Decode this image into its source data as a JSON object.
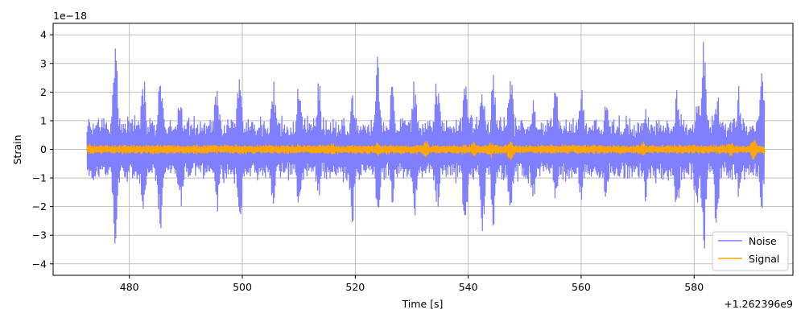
{
  "chart_data": {
    "type": "line",
    "title": "",
    "xlabel": "Time [s]",
    "ylabel": "Strain",
    "x_offset_label": "+1.262396e9",
    "y_scale_label": "1e−18",
    "xlim": [
      466.5,
      597.5
    ],
    "ylim": [
      -4.4,
      4.4
    ],
    "xticks": [
      480,
      500,
      520,
      540,
      560,
      580
    ],
    "yticks": [
      -4,
      -3,
      -2,
      -1,
      0,
      1,
      2,
      3,
      4
    ],
    "ytick_labels": [
      "−4",
      "−3",
      "−2",
      "−1",
      "0",
      "1",
      "2",
      "3",
      "4"
    ],
    "grid": true,
    "legend_position": "bottom-right",
    "x_range": [
      472.5,
      592.5
    ],
    "series": [
      {
        "name": "Noise",
        "color": "#7f7fff",
        "typical_amplitude": 1.0,
        "peaks": [
          {
            "x": 477.5,
            "high": 4.0,
            "low": -3.8
          },
          {
            "x": 482.5,
            "high": 2.8,
            "low": -2.5
          },
          {
            "x": 485.5,
            "high": 3.4,
            "low": -3.2
          },
          {
            "x": 489.0,
            "high": 2.4,
            "low": -2.6
          },
          {
            "x": 495.5,
            "high": 2.6,
            "low": -2.3
          },
          {
            "x": 499.5,
            "high": 3.2,
            "low": -3.0
          },
          {
            "x": 505.5,
            "high": 2.7,
            "low": -2.1
          },
          {
            "x": 510.0,
            "high": 2.8,
            "low": -2.6
          },
          {
            "x": 513.5,
            "high": 2.7,
            "low": -1.9
          },
          {
            "x": 519.5,
            "high": 2.3,
            "low": -3.1
          },
          {
            "x": 524.0,
            "high": 3.6,
            "low": -3.1
          },
          {
            "x": 526.5,
            "high": 2.4,
            "low": -2.2
          },
          {
            "x": 530.5,
            "high": 2.8,
            "low": -2.8
          },
          {
            "x": 534.5,
            "high": 3.0,
            "low": -2.5
          },
          {
            "x": 539.5,
            "high": 2.8,
            "low": -3.3
          },
          {
            "x": 542.5,
            "high": 3.2,
            "low": -3.3
          },
          {
            "x": 544.5,
            "high": 3.0,
            "low": -3.1
          },
          {
            "x": 547.5,
            "high": 3.2,
            "low": -2.6
          },
          {
            "x": 551.5,
            "high": 2.0,
            "low": -2.4
          },
          {
            "x": 555.5,
            "high": 2.5,
            "low": -2.0
          },
          {
            "x": 560.0,
            "high": 2.6,
            "low": -2.1
          },
          {
            "x": 564.5,
            "high": 2.2,
            "low": -2.1
          },
          {
            "x": 571.5,
            "high": 1.7,
            "low": -2.1
          },
          {
            "x": 577.0,
            "high": 2.4,
            "low": -2.7
          },
          {
            "x": 580.5,
            "high": 2.3,
            "low": -2.9
          },
          {
            "x": 581.7,
            "high": 4.0,
            "low": -3.9
          },
          {
            "x": 584.0,
            "high": 2.4,
            "low": -2.9
          },
          {
            "x": 588.0,
            "high": 2.4,
            "low": -2.1
          },
          {
            "x": 592.0,
            "high": 3.2,
            "low": -2.3
          }
        ]
      },
      {
        "name": "Signal",
        "color": "#ffa500",
        "typical_amplitude": 0.15,
        "peaks": [
          {
            "x": 473.0,
            "high": 0.25,
            "low": -0.2
          },
          {
            "x": 485.0,
            "high": 0.2,
            "low": -0.2
          },
          {
            "x": 503.0,
            "high": 0.15,
            "low": -0.15
          },
          {
            "x": 516.0,
            "high": 0.25,
            "low": -0.2
          },
          {
            "x": 524.0,
            "high": 0.3,
            "low": -0.3
          },
          {
            "x": 532.5,
            "high": 0.35,
            "low": -0.35
          },
          {
            "x": 541.0,
            "high": 0.3,
            "low": -0.3
          },
          {
            "x": 544.0,
            "high": 0.3,
            "low": -0.35
          },
          {
            "x": 547.5,
            "high": 0.4,
            "low": -0.5
          },
          {
            "x": 554.0,
            "high": 0.2,
            "low": -0.2
          },
          {
            "x": 571.0,
            "high": 0.3,
            "low": -0.3
          },
          {
            "x": 586.5,
            "high": 0.3,
            "low": -0.3
          },
          {
            "x": 590.5,
            "high": 0.45,
            "low": -0.45
          }
        ]
      }
    ]
  }
}
